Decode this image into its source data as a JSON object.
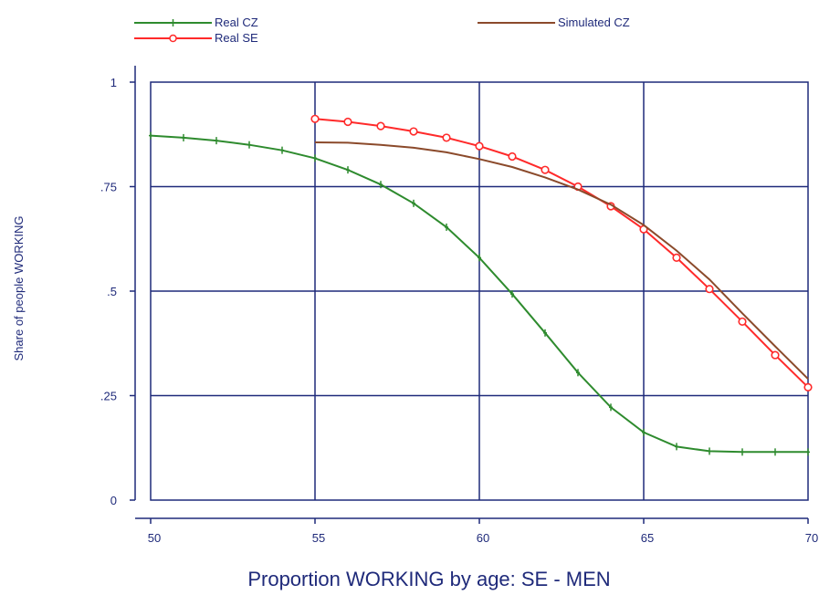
{
  "chart_data": {
    "type": "line",
    "xlabel": "Proportion WORKING by age: SE - MEN",
    "ylabel": "Share of people WORKING",
    "xlim": [
      50,
      70
    ],
    "ylim": [
      0,
      1
    ],
    "x_ticks": [
      50,
      55,
      60,
      65,
      70
    ],
    "x_tick_labels": [
      "50",
      "55",
      "60",
      "65",
      "70"
    ],
    "y_ticks": [
      0,
      0.25,
      0.5,
      0.75,
      1
    ],
    "y_tick_labels": [
      "0",
      ".25",
      ".5",
      ".75",
      "1"
    ],
    "grid": true,
    "legend_position": "top",
    "colors": {
      "axis": "#1f2a7a",
      "grid": "#1f2a7a",
      "real_cz": "#2e8b2e",
      "real_se": "#ff2a2a",
      "simulated_cz": "#8b4a2b"
    },
    "series": [
      {
        "name": "Real CZ",
        "marker": "plus",
        "color": "#2e8b2e",
        "x": [
          50,
          51,
          52,
          53,
          54,
          55,
          56,
          57,
          58,
          59,
          60,
          61,
          62,
          63,
          64,
          65,
          66,
          67,
          68,
          69,
          70
        ],
        "y": [
          0.872,
          0.867,
          0.86,
          0.85,
          0.837,
          0.818,
          0.79,
          0.755,
          0.71,
          0.653,
          0.58,
          0.493,
          0.4,
          0.305,
          0.222,
          0.162,
          0.128,
          0.117,
          0.115,
          0.115,
          0.115
        ]
      },
      {
        "name": "Real SE",
        "marker": "circle",
        "color": "#ff2a2a",
        "x": [
          55,
          56,
          57,
          58,
          59,
          60,
          61,
          62,
          63,
          64,
          65,
          66,
          67,
          68,
          69,
          70
        ],
        "y": [
          0.912,
          0.905,
          0.895,
          0.882,
          0.867,
          0.847,
          0.822,
          0.79,
          0.75,
          0.703,
          0.648,
          0.58,
          0.505,
          0.427,
          0.347,
          0.27
        ]
      },
      {
        "name": "Simulated CZ",
        "marker": "none",
        "color": "#8b4a2b",
        "x": [
          55,
          56,
          57,
          58,
          59,
          60,
          61,
          62,
          63,
          64,
          65,
          66,
          67,
          68,
          69,
          70
        ],
        "y": [
          0.856,
          0.855,
          0.85,
          0.843,
          0.832,
          0.816,
          0.797,
          0.772,
          0.743,
          0.707,
          0.658,
          0.597,
          0.528,
          0.447,
          0.368,
          0.29
        ]
      }
    ],
    "legend": [
      {
        "label": "Real CZ",
        "series": 0
      },
      {
        "label": "Real SE",
        "series": 1
      },
      {
        "label": "Simulated CZ",
        "series": 2
      }
    ]
  }
}
